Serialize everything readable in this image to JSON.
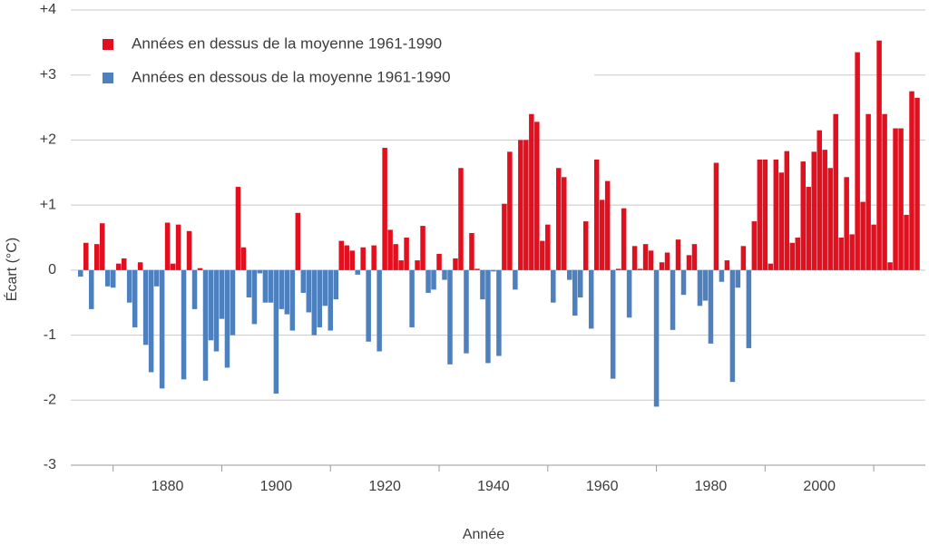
{
  "chart_data": {
    "type": "bar",
    "xlabel": "Année",
    "ylabel": "Écart (°C)",
    "x": [
      1864,
      1865,
      1866,
      1867,
      1868,
      1869,
      1870,
      1871,
      1872,
      1873,
      1874,
      1875,
      1876,
      1877,
      1878,
      1879,
      1880,
      1881,
      1882,
      1883,
      1884,
      1885,
      1886,
      1887,
      1888,
      1889,
      1890,
      1891,
      1892,
      1893,
      1894,
      1895,
      1896,
      1897,
      1898,
      1899,
      1900,
      1901,
      1902,
      1903,
      1904,
      1905,
      1906,
      1907,
      1908,
      1909,
      1910,
      1911,
      1912,
      1913,
      1914,
      1915,
      1916,
      1917,
      1918,
      1919,
      1920,
      1921,
      1922,
      1923,
      1924,
      1925,
      1926,
      1927,
      1928,
      1929,
      1930,
      1931,
      1932,
      1933,
      1934,
      1935,
      1936,
      1937,
      1938,
      1939,
      1940,
      1941,
      1942,
      1943,
      1944,
      1945,
      1946,
      1947,
      1948,
      1949,
      1950,
      1951,
      1952,
      1953,
      1954,
      1955,
      1956,
      1957,
      1958,
      1959,
      1960,
      1961,
      1962,
      1963,
      1964,
      1965,
      1966,
      1967,
      1968,
      1969,
      1970,
      1971,
      1972,
      1973,
      1974,
      1975,
      1976,
      1977,
      1978,
      1979,
      1980,
      1981,
      1982,
      1983,
      1984,
      1985,
      1986,
      1987,
      1988,
      1989,
      1990,
      1991,
      1992,
      1993,
      1994,
      1995,
      1996,
      1997,
      1998,
      1999,
      2000,
      2001,
      2002,
      2003,
      2004,
      2005,
      2006,
      2007,
      2008,
      2009,
      2010,
      2011,
      2012,
      2013,
      2014,
      2015,
      2016,
      2017,
      2018
    ],
    "series": [
      {
        "name": "Années en dessus de la moyenne 1961-1990",
        "color": "#e2101e",
        "values": [
          null,
          0.42,
          null,
          0.4,
          0.72,
          null,
          null,
          0.1,
          0.18,
          null,
          null,
          0.12,
          null,
          null,
          null,
          null,
          0.73,
          0.1,
          0.7,
          null,
          0.6,
          null,
          0.03,
          null,
          null,
          null,
          null,
          null,
          null,
          1.28,
          0.35,
          null,
          null,
          null,
          null,
          null,
          null,
          null,
          null,
          null,
          0.88,
          null,
          null,
          null,
          null,
          null,
          null,
          null,
          0.45,
          0.38,
          0.3,
          null,
          0.35,
          null,
          0.38,
          null,
          1.88,
          0.62,
          0.4,
          0.15,
          0.5,
          null,
          0.15,
          0.68,
          null,
          null,
          0.25,
          null,
          null,
          0.18,
          1.57,
          null,
          0.57,
          0.02,
          null,
          null,
          null,
          null,
          1.02,
          1.82,
          null,
          2.0,
          2.0,
          2.4,
          2.28,
          0.45,
          0.7,
          null,
          1.57,
          1.43,
          null,
          null,
          null,
          0.75,
          null,
          1.7,
          1.08,
          1.37,
          null,
          0.02,
          0.95,
          null,
          0.37,
          0.02,
          0.4,
          0.3,
          null,
          0.12,
          0.27,
          null,
          0.47,
          null,
          0.23,
          0.4,
          null,
          null,
          null,
          1.65,
          null,
          0.15,
          null,
          null,
          0.37,
          null,
          0.75,
          1.7,
          1.7,
          0.1,
          1.7,
          1.5,
          1.83,
          0.42,
          0.5,
          1.67,
          1.28,
          1.82,
          2.15,
          1.85,
          1.57,
          2.4,
          0.5,
          1.43,
          0.55,
          3.35,
          1.05,
          2.4,
          0.7,
          3.53,
          2.4,
          0.12,
          2.18,
          2.18,
          0.85,
          2.75,
          2.65
        ]
      },
      {
        "name": "Années en dessous de la moyenne 1961-1990",
        "color": "#4f80be",
        "values": [
          -0.1,
          null,
          -0.6,
          null,
          null,
          -0.25,
          -0.27,
          null,
          null,
          -0.5,
          -0.88,
          null,
          -1.15,
          -1.57,
          -0.25,
          -1.82,
          null,
          null,
          null,
          -1.68,
          null,
          -0.6,
          null,
          -1.7,
          -1.08,
          -1.25,
          -0.75,
          -1.5,
          -1.0,
          null,
          null,
          -0.42,
          -0.83,
          -0.05,
          -0.5,
          -0.5,
          -1.9,
          -0.6,
          -0.68,
          -0.93,
          null,
          -0.35,
          -0.65,
          -1.0,
          -0.88,
          -0.55,
          -0.93,
          -0.45,
          null,
          null,
          null,
          -0.07,
          null,
          -1.1,
          null,
          -1.25,
          null,
          null,
          null,
          null,
          null,
          -0.88,
          null,
          null,
          -0.35,
          -0.3,
          null,
          -0.15,
          -1.45,
          null,
          null,
          -1.28,
          null,
          null,
          -0.45,
          -1.43,
          -0.02,
          -1.32,
          null,
          null,
          -0.3,
          null,
          null,
          null,
          null,
          null,
          null,
          -0.5,
          null,
          null,
          -0.15,
          -0.7,
          -0.42,
          null,
          -0.9,
          null,
          null,
          null,
          -1.67,
          null,
          null,
          -0.73,
          null,
          null,
          null,
          null,
          -2.1,
          null,
          null,
          -0.92,
          null,
          -0.38,
          null,
          null,
          -0.55,
          -0.47,
          -1.13,
          null,
          -0.18,
          null,
          -1.72,
          -0.27,
          null,
          -1.2,
          null,
          null,
          null,
          null,
          null,
          null,
          null,
          null,
          null,
          null,
          null,
          null,
          null,
          null,
          null,
          null,
          null,
          null,
          null,
          null,
          null,
          null,
          null,
          null,
          null,
          null,
          null,
          null,
          null,
          null,
          null
        ]
      }
    ],
    "xlim": [
      1862.2,
      2019.5
    ],
    "xticks": [
      1880,
      1900,
      1920,
      1940,
      1960,
      1980,
      2000
    ],
    "xminorticks": [
      1870,
      1890,
      1910,
      1930,
      1950,
      1970,
      1990,
      2010
    ],
    "ylim": [
      -3,
      4
    ],
    "yticks": [
      {
        "value": 4,
        "label": "+4"
      },
      {
        "value": 3,
        "label": "+3"
      },
      {
        "value": 2,
        "label": "+2"
      },
      {
        "value": 1,
        "label": "+1"
      },
      0,
      -1,
      -2,
      -3
    ],
    "grid": true,
    "legend": "top-left"
  }
}
